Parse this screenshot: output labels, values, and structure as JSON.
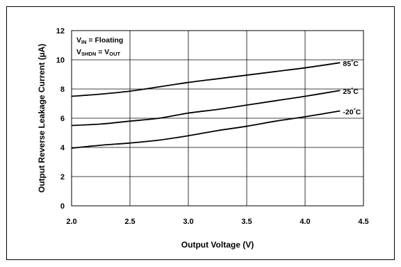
{
  "chart_data": {
    "type": "line",
    "title": "",
    "xlabel": "Output Voltage (V)",
    "ylabel": "Output Reverse Leakage Current (µA)",
    "xlim": [
      2.0,
      4.5
    ],
    "ylim": [
      0,
      12
    ],
    "xticks": [
      "2.0",
      "2.5",
      "3.0",
      "3.5",
      "4.0",
      "4.5"
    ],
    "yticks": [
      "0",
      "2",
      "4",
      "6",
      "8",
      "10",
      "12"
    ],
    "grid": true,
    "annotations": {
      "vin_line": {
        "main": "V",
        "sub": "IN",
        "rest": " = Floating"
      },
      "vshdn_line": {
        "main": "V",
        "sub": "SHDN",
        "eq": " = V",
        "sub2": "OUT"
      }
    },
    "series": [
      {
        "name": "85°C",
        "label_main": "85",
        "label_deg": "°",
        "label_unit": "C",
        "color": "#000000",
        "x": [
          2.0,
          2.25,
          2.5,
          2.75,
          3.0,
          3.25,
          3.5,
          3.75,
          4.0,
          4.3
        ],
        "y": [
          7.5,
          7.65,
          7.85,
          8.15,
          8.45,
          8.7,
          8.95,
          9.2,
          9.45,
          9.8
        ]
      },
      {
        "name": "25°C",
        "label_main": "25",
        "label_deg": "°",
        "label_unit": "C",
        "color": "#000000",
        "x": [
          2.0,
          2.25,
          2.5,
          2.75,
          3.0,
          3.25,
          3.5,
          3.75,
          4.0,
          4.3
        ],
        "y": [
          5.5,
          5.6,
          5.8,
          6.0,
          6.35,
          6.6,
          6.9,
          7.2,
          7.5,
          7.9
        ]
      },
      {
        "name": "-20°C",
        "label_main": "-20",
        "label_deg": "°",
        "label_unit": "C",
        "color": "#000000",
        "x": [
          2.0,
          2.25,
          2.5,
          2.75,
          3.0,
          3.25,
          3.5,
          3.75,
          4.0,
          4.3
        ],
        "y": [
          3.95,
          4.15,
          4.3,
          4.5,
          4.8,
          5.15,
          5.45,
          5.8,
          6.1,
          6.5
        ]
      }
    ]
  }
}
